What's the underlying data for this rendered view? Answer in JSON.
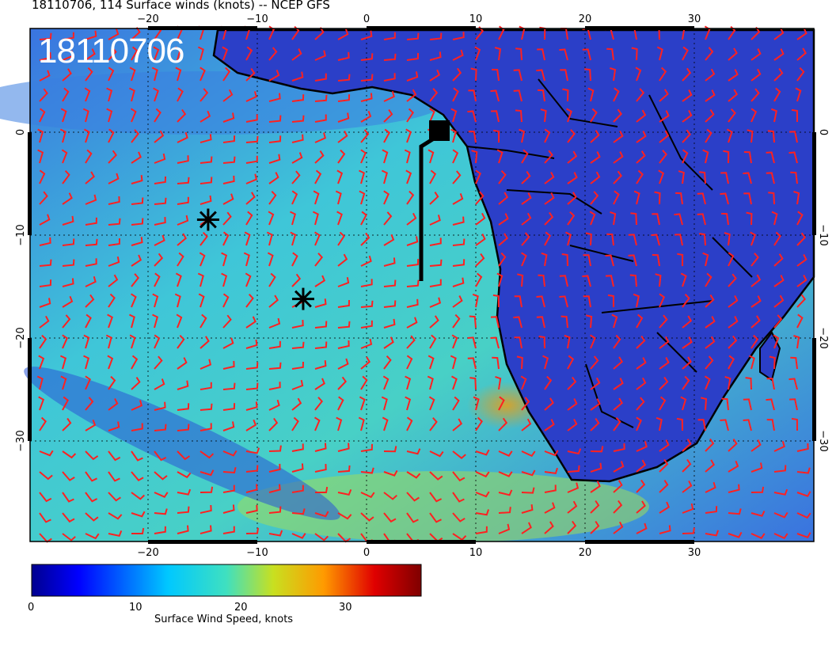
{
  "header": {
    "title": "18110706, 114 Surface winds (knots) -- NCEP GFS",
    "stamp": "18110706"
  },
  "map": {
    "lon_ticks": [
      "−20",
      "−10",
      "0",
      "10",
      "20",
      "30"
    ],
    "top_lon_ticks": [
      "−20",
      "−10",
      "0",
      "10",
      "20",
      "30"
    ],
    "lat_ticks_left": [
      "0",
      "−10",
      "−20",
      "−30"
    ],
    "lat_ticks_right": [
      "0",
      "−10",
      "−20",
      "−30"
    ],
    "markers": [
      {
        "name": "asterisk-marker-1",
        "lon": -14.5,
        "lat": -8.5
      },
      {
        "name": "asterisk-marker-2",
        "lon": -5.8,
        "lat": -16.2
      }
    ],
    "square_marker": {
      "lon": 6.6,
      "lat": 0.3
    },
    "colors": {
      "barbs": "#ff2020",
      "coast": "#000000"
    }
  },
  "colorbar": {
    "ticks": [
      "0",
      "10",
      "20",
      "30"
    ],
    "title": "Surface Wind Speed, knots",
    "range": [
      0,
      37
    ]
  }
}
